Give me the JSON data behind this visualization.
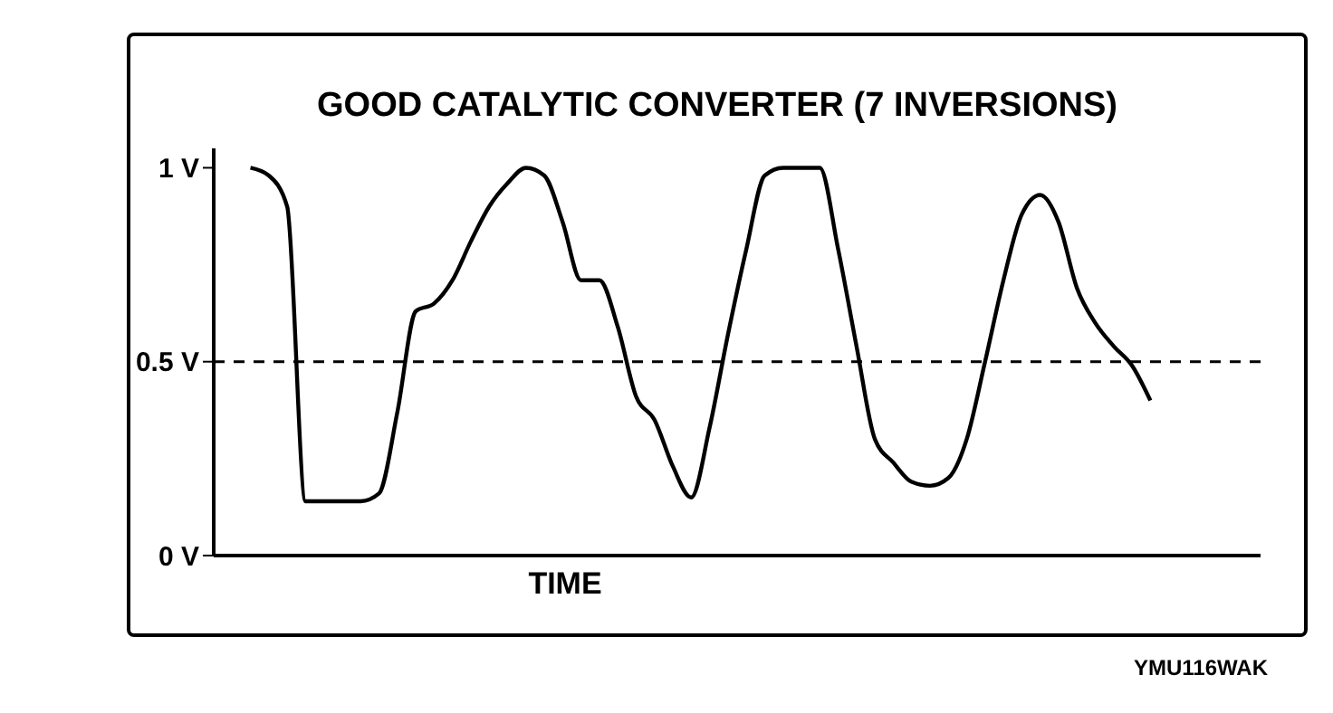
{
  "chart_data": {
    "type": "line",
    "title": "GOOD CATALYTIC CONVERTER (7 INVERSIONS)",
    "xlabel": "TIME",
    "categories": [
      null,
      null,
      null,
      null,
      null,
      null,
      null,
      null,
      null,
      null,
      null,
      null,
      null,
      null,
      null,
      null,
      null,
      null,
      null,
      null,
      null,
      null,
      null,
      null,
      null,
      null,
      null,
      null,
      null,
      null,
      null,
      null,
      null,
      null,
      null,
      null,
      null,
      null,
      null,
      null,
      null,
      null,
      null,
      null,
      null,
      null,
      null,
      null,
      null,
      null,
      null,
      null,
      null,
      null,
      null,
      null,
      null,
      null
    ],
    "series": [
      {
        "color": "#000000",
        "values": [
          null,
          null,
          1.0,
          0.98,
          0.9,
          0.14,
          0.14,
          0.14,
          0.14,
          0.16,
          0.37,
          0.63,
          0.65,
          0.71,
          0.81,
          0.9,
          0.96,
          1.0,
          0.98,
          0.86,
          0.71,
          0.71,
          0.59,
          0.41,
          0.35,
          0.23,
          0.15,
          0.33,
          0.57,
          0.79,
          0.98,
          1.0,
          1.0,
          1.0,
          0.79,
          0.54,
          0.3,
          0.24,
          0.19,
          0.18,
          0.2,
          0.3,
          0.5,
          0.71,
          0.88,
          0.93,
          0.86,
          0.69,
          0.6,
          0.54,
          0.49,
          0.4,
          null,
          null,
          null,
          null,
          null,
          null
        ]
      }
    ],
    "ylim": [
      0,
      1.05
    ],
    "yticks": [
      {
        "value": 0,
        "label": "0 V"
      },
      {
        "value": 0.5,
        "label": "0.5 V"
      },
      {
        "value": 1,
        "label": "1 V"
      }
    ],
    "ref_lines": [
      {
        "axis": "y",
        "value": 0.5,
        "line_style": "dashed"
      }
    ],
    "grid": false,
    "legend": false,
    "marker": "none",
    "line_style": "solid",
    "annotations": [
      "YMU116WAK"
    ]
  }
}
